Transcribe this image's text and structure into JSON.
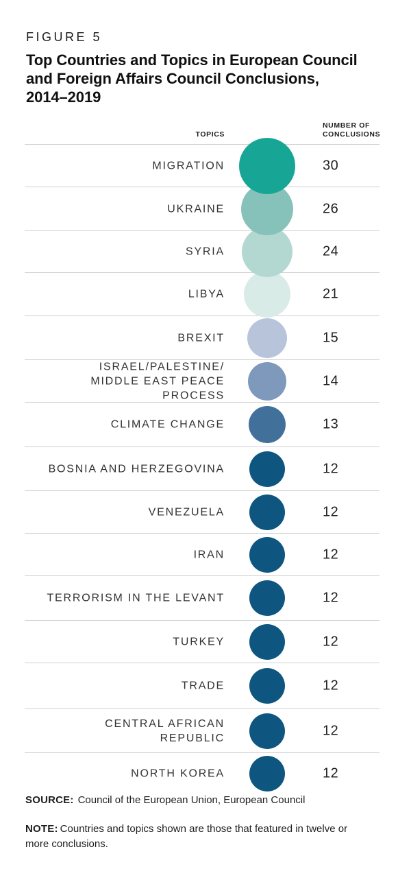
{
  "figure": {
    "label": "FIGURE 5",
    "title_lines": [
      "Top Countries and Topics in European Council",
      "and Foreign Affairs Council Conclusions,",
      "2014–2019"
    ]
  },
  "chart_data": {
    "type": "bubble-list",
    "columns": {
      "topics_header": "TOPICS",
      "conclusions_header_lines": [
        "NUMBER OF",
        "CONCLUSIONS"
      ]
    },
    "value_range": [
      12,
      30
    ],
    "rows": [
      {
        "topic_lines": [
          "MIGRATION"
        ],
        "value": 30,
        "color": "#17a695"
      },
      {
        "topic_lines": [
          "UKRAINE"
        ],
        "value": 26,
        "color": "#86c2ba"
      },
      {
        "topic_lines": [
          "SYRIA"
        ],
        "value": 24,
        "color": "#b3d8d2"
      },
      {
        "topic_lines": [
          "LIBYA"
        ],
        "value": 21,
        "color": "#d9ebe7"
      },
      {
        "topic_lines": [
          "BREXIT"
        ],
        "value": 15,
        "color": "#b8c4d9"
      },
      {
        "topic_lines": [
          "ISRAEL/PALESTINE/",
          "MIDDLE EAST PEACE PROCESS"
        ],
        "value": 14,
        "color": "#7f99bc"
      },
      {
        "topic_lines": [
          "CLIMATE CHANGE"
        ],
        "value": 13,
        "color": "#41709a"
      },
      {
        "topic_lines": [
          "BOSNIA AND HERZEGOVINA"
        ],
        "value": 12,
        "color": "#0e567f"
      },
      {
        "topic_lines": [
          "VENEZUELA"
        ],
        "value": 12,
        "color": "#0e567f"
      },
      {
        "topic_lines": [
          "IRAN"
        ],
        "value": 12,
        "color": "#0e567f"
      },
      {
        "topic_lines": [
          "TERRORISM IN THE LEVANT"
        ],
        "value": 12,
        "color": "#0e567f"
      },
      {
        "topic_lines": [
          "TURKEY"
        ],
        "value": 12,
        "color": "#0e567f"
      },
      {
        "topic_lines": [
          "TRADE"
        ],
        "value": 12,
        "color": "#0e567f"
      },
      {
        "topic_lines": [
          "CENTRAL AFRICAN",
          "REPUBLIC"
        ],
        "value": 12,
        "color": "#0e567f"
      },
      {
        "topic_lines": [
          "NORTH KOREA"
        ],
        "value": 12,
        "color": "#0e567f"
      }
    ]
  },
  "footer": {
    "source_label": "SOURCE:",
    "source_text": "Council of the European Union, European Council",
    "note_label": "NOTE:",
    "note_text": "Countries and topics shown are those that featured in twelve or more conclusions."
  },
  "colors": {
    "gridline": "#cfcfcf",
    "teal_max": "#17a695",
    "navy_min": "#0e567f",
    "text": "#1f1f1f"
  }
}
